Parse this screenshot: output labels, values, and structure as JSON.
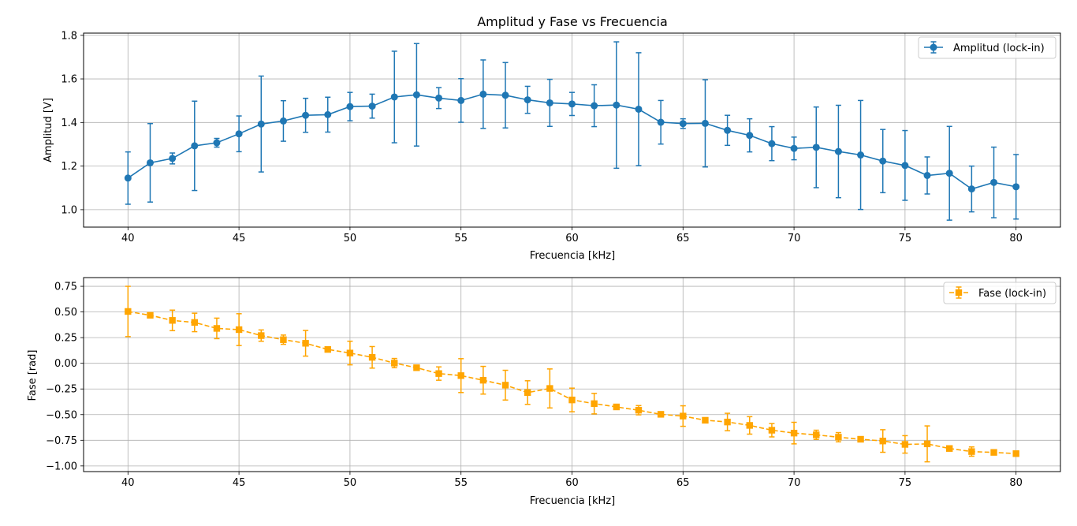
{
  "chart_data": [
    {
      "type": "line",
      "title": "Amplitud y Fase vs Frecuencia",
      "xlabel": "Frecuencia [kHz]",
      "ylabel": "Amplitud [V]",
      "xlim": [
        38,
        82
      ],
      "ylim": [
        0.92,
        1.81
      ],
      "xticks": [
        40,
        45,
        50,
        55,
        60,
        65,
        70,
        75,
        80
      ],
      "yticks": [
        1.0,
        1.2,
        1.4,
        1.6,
        1.8
      ],
      "ytick_decimals": 1,
      "grid": true,
      "legend_position": "top-right",
      "x": [
        40,
        41,
        42,
        43,
        44,
        45,
        46,
        47,
        48,
        49,
        50,
        51,
        52,
        53,
        54,
        55,
        56,
        57,
        58,
        59,
        60,
        61,
        62,
        63,
        64,
        65,
        66,
        67,
        68,
        69,
        70,
        71,
        72,
        73,
        74,
        75,
        76,
        77,
        78,
        79,
        80
      ],
      "series": [
        {
          "name": "Amplitud (lock-in)",
          "color": "#1f77b4",
          "marker": "circle",
          "linestyle": "solid",
          "values": [
            1.145,
            1.215,
            1.235,
            1.293,
            1.307,
            1.348,
            1.393,
            1.407,
            1.433,
            1.436,
            1.473,
            1.475,
            1.517,
            1.527,
            1.512,
            1.501,
            1.53,
            1.525,
            1.504,
            1.49,
            1.485,
            1.477,
            1.48,
            1.461,
            1.401,
            1.395,
            1.396,
            1.364,
            1.341,
            1.303,
            1.281,
            1.286,
            1.267,
            1.251,
            1.223,
            1.203,
            1.157,
            1.167,
            1.095,
            1.125,
            1.105
          ],
          "errors": [
            0.12,
            0.18,
            0.025,
            0.205,
            0.02,
            0.082,
            0.22,
            0.093,
            0.078,
            0.08,
            0.065,
            0.055,
            0.21,
            0.235,
            0.048,
            0.1,
            0.157,
            0.15,
            0.062,
            0.108,
            0.053,
            0.096,
            0.29,
            0.259,
            0.1,
            0.022,
            0.2,
            0.069,
            0.076,
            0.078,
            0.052,
            0.185,
            0.212,
            0.25,
            0.145,
            0.16,
            0.085,
            0.215,
            0.105,
            0.162,
            0.148
          ]
        }
      ]
    },
    {
      "type": "line",
      "title": "",
      "xlabel": "Frecuencia [kHz]",
      "ylabel": "Fase [rad]",
      "xlim": [
        38,
        82
      ],
      "ylim": [
        -1.055,
        0.835
      ],
      "xticks": [
        40,
        45,
        50,
        55,
        60,
        65,
        70,
        75,
        80
      ],
      "yticks": [
        0.75,
        0.5,
        0.25,
        0.0,
        -0.25,
        -0.5,
        -0.75,
        -1.0
      ],
      "ytick_decimals": 2,
      "grid": true,
      "legend_position": "top-right",
      "x": [
        40,
        41,
        42,
        43,
        44,
        45,
        46,
        47,
        48,
        49,
        50,
        51,
        52,
        53,
        54,
        55,
        56,
        57,
        58,
        59,
        60,
        61,
        62,
        63,
        64,
        65,
        66,
        67,
        68,
        69,
        70,
        71,
        72,
        73,
        74,
        75,
        76,
        77,
        78,
        79,
        80
      ],
      "series": [
        {
          "name": "Fase (lock-in)",
          "color": "#ffa500",
          "marker": "square",
          "linestyle": "dashed",
          "values": [
            0.505,
            0.468,
            0.418,
            0.398,
            0.34,
            0.328,
            0.27,
            0.23,
            0.195,
            0.135,
            0.1,
            0.058,
            0.002,
            -0.043,
            -0.1,
            -0.12,
            -0.165,
            -0.213,
            -0.285,
            -0.245,
            -0.357,
            -0.393,
            -0.425,
            -0.457,
            -0.497,
            -0.514,
            -0.555,
            -0.572,
            -0.605,
            -0.652,
            -0.68,
            -0.697,
            -0.72,
            -0.74,
            -0.757,
            -0.79,
            -0.785,
            -0.83,
            -0.86,
            -0.868,
            -0.88
          ],
          "errors": [
            0.245,
            0.02,
            0.1,
            0.09,
            0.1,
            0.155,
            0.055,
            0.045,
            0.125,
            0.01,
            0.115,
            0.105,
            0.045,
            0.02,
            0.065,
            0.165,
            0.135,
            0.145,
            0.115,
            0.19,
            0.115,
            0.1,
            0.02,
            0.045,
            0.02,
            0.1,
            0.02,
            0.085,
            0.085,
            0.065,
            0.105,
            0.045,
            0.045,
            0.02,
            0.11,
            0.085,
            0.175,
            0.02,
            0.045,
            0.02,
            0.02
          ]
        }
      ]
    }
  ]
}
